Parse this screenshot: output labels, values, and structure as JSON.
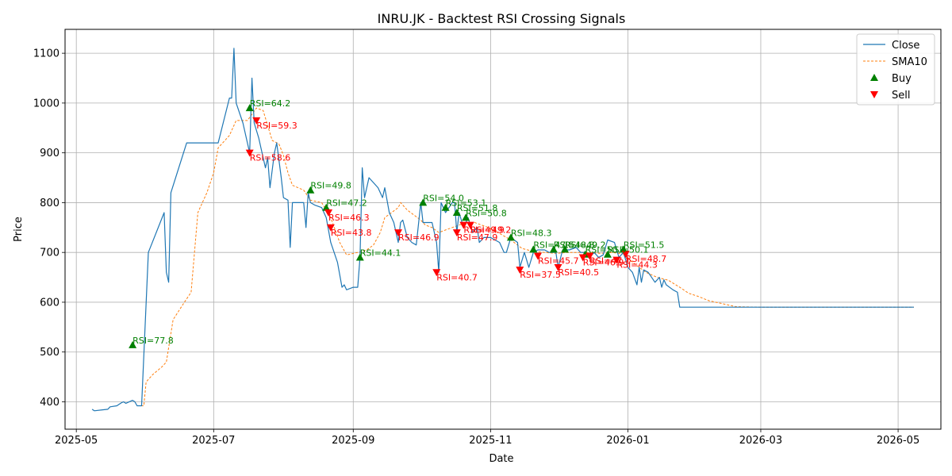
{
  "chart_data": {
    "type": "line",
    "title": "INRU.JK - Backtest RSI Crossing Signals",
    "xlabel": "Date",
    "ylabel": "Price",
    "xlim": [
      "2025-04-26",
      "2026-05-20"
    ],
    "ylim": [
      345,
      1148
    ],
    "x_ticks": [
      "2025-05",
      "2025-07",
      "2025-09",
      "2025-11",
      "2026-01",
      "2026-03",
      "2026-05"
    ],
    "y_ticks": [
      400,
      500,
      600,
      700,
      800,
      900,
      1000,
      1100
    ],
    "grid": true,
    "legend": {
      "position": "top-right",
      "entries": [
        "Close",
        "SMA10",
        "Buy",
        "Sell"
      ]
    },
    "colors": {
      "close": "#1f77b4",
      "sma": "#ff7f0e",
      "buy": "#008000",
      "sell": "#ff0000"
    },
    "series": [
      {
        "name": "Close",
        "style": "solid",
        "points": [
          [
            "2025-05-08",
            385
          ],
          [
            "2025-05-09",
            382
          ],
          [
            "2025-05-15",
            385
          ],
          [
            "2025-05-16",
            390
          ],
          [
            "2025-05-19",
            392
          ],
          [
            "2025-05-20",
            395
          ],
          [
            "2025-05-21",
            398
          ],
          [
            "2025-05-22",
            400
          ],
          [
            "2025-05-23",
            397
          ],
          [
            "2025-05-26",
            403
          ],
          [
            "2025-05-27",
            400
          ],
          [
            "2025-05-28",
            392
          ],
          [
            "2025-05-29",
            392
          ],
          [
            "2025-05-30",
            392
          ],
          [
            "2025-06-02",
            700
          ],
          [
            "2025-06-09",
            780
          ],
          [
            "2025-06-10",
            660
          ],
          [
            "2025-06-11",
            640
          ],
          [
            "2025-06-12",
            820
          ],
          [
            "2025-06-19",
            920
          ],
          [
            "2025-06-26",
            920
          ],
          [
            "2025-07-03",
            920
          ],
          [
            "2025-07-08",
            1010
          ],
          [
            "2025-07-09",
            1010
          ],
          [
            "2025-07-10",
            1110
          ],
          [
            "2025-07-11",
            1000
          ],
          [
            "2025-07-14",
            960
          ],
          [
            "2025-07-17",
            900
          ],
          [
            "2025-07-18",
            1050
          ],
          [
            "2025-07-19",
            960
          ],
          [
            "2025-07-21",
            930
          ],
          [
            "2025-07-22",
            910
          ],
          [
            "2025-07-24",
            870
          ],
          [
            "2025-07-25",
            890
          ],
          [
            "2025-07-26",
            830
          ],
          [
            "2025-07-28",
            900
          ],
          [
            "2025-07-29",
            920
          ],
          [
            "2025-07-31",
            850
          ],
          [
            "2025-08-01",
            810
          ],
          [
            "2025-08-03",
            805
          ],
          [
            "2025-08-04",
            710
          ],
          [
            "2025-08-05",
            800
          ],
          [
            "2025-08-08",
            800
          ],
          [
            "2025-08-10",
            800
          ],
          [
            "2025-08-11",
            750
          ],
          [
            "2025-08-12",
            820
          ],
          [
            "2025-08-13",
            800
          ],
          [
            "2025-08-15",
            795
          ],
          [
            "2025-08-18",
            790
          ],
          [
            "2025-08-20",
            770
          ],
          [
            "2025-08-22",
            720
          ],
          [
            "2025-08-25",
            680
          ],
          [
            "2025-08-27",
            630
          ],
          [
            "2025-08-28",
            635
          ],
          [
            "2025-08-29",
            625
          ],
          [
            "2025-09-01",
            630
          ],
          [
            "2025-09-03",
            630
          ],
          [
            "2025-09-04",
            690
          ],
          [
            "2025-09-05",
            870
          ],
          [
            "2025-09-06",
            810
          ],
          [
            "2025-09-08",
            850
          ],
          [
            "2025-09-12",
            830
          ],
          [
            "2025-09-14",
            810
          ],
          [
            "2025-09-15",
            830
          ],
          [
            "2025-09-17",
            780
          ],
          [
            "2025-09-19",
            760
          ],
          [
            "2025-09-20",
            740
          ],
          [
            "2025-09-21",
            720
          ],
          [
            "2025-09-22",
            760
          ],
          [
            "2025-09-23",
            765
          ],
          [
            "2025-09-25",
            730
          ],
          [
            "2025-09-27",
            720
          ],
          [
            "2025-09-29",
            715
          ],
          [
            "2025-10-01",
            800
          ],
          [
            "2025-10-02",
            760
          ],
          [
            "2025-10-06",
            760
          ],
          [
            "2025-10-08",
            720
          ],
          [
            "2025-10-09",
            660
          ],
          [
            "2025-10-10",
            800
          ],
          [
            "2025-10-12",
            780
          ],
          [
            "2025-10-15",
            800
          ],
          [
            "2025-10-16",
            800
          ],
          [
            "2025-10-17",
            740
          ],
          [
            "2025-10-18",
            780
          ],
          [
            "2025-10-20",
            750
          ],
          [
            "2025-10-22",
            770
          ],
          [
            "2025-10-24",
            740
          ],
          [
            "2025-10-26",
            750
          ],
          [
            "2025-10-27",
            720
          ],
          [
            "2025-10-29",
            730
          ],
          [
            "2025-11-01",
            730
          ],
          [
            "2025-11-05",
            720
          ],
          [
            "2025-11-07",
            700
          ],
          [
            "2025-11-08",
            700
          ],
          [
            "2025-11-10",
            730
          ],
          [
            "2025-11-13",
            720
          ],
          [
            "2025-11-14",
            670
          ],
          [
            "2025-11-16",
            700
          ],
          [
            "2025-11-18",
            670
          ],
          [
            "2025-11-20",
            700
          ],
          [
            "2025-11-22",
            705
          ],
          [
            "2025-11-25",
            705
          ],
          [
            "2025-11-27",
            700
          ],
          [
            "2025-11-30",
            700
          ],
          [
            "2025-12-01",
            670
          ],
          [
            "2025-12-03",
            705
          ],
          [
            "2025-12-06",
            705
          ],
          [
            "2025-12-09",
            710
          ],
          [
            "2025-12-11",
            700
          ],
          [
            "2025-12-13",
            700
          ],
          [
            "2025-12-15",
            690
          ],
          [
            "2025-12-17",
            700
          ],
          [
            "2025-12-19",
            690
          ],
          [
            "2025-12-21",
            695
          ],
          [
            "2025-12-23",
            725
          ],
          [
            "2025-12-26",
            720
          ],
          [
            "2025-12-28",
            690
          ],
          [
            "2025-12-30",
            700
          ],
          [
            "2026-01-01",
            670
          ],
          [
            "2026-01-03",
            660
          ],
          [
            "2026-01-05",
            635
          ],
          [
            "2026-01-06",
            670
          ],
          [
            "2026-01-07",
            640
          ],
          [
            "2026-01-08",
            665
          ],
          [
            "2026-01-10",
            660
          ],
          [
            "2026-01-13",
            640
          ],
          [
            "2026-01-15",
            650
          ],
          [
            "2026-01-16",
            630
          ],
          [
            "2026-01-17",
            645
          ],
          [
            "2026-01-18",
            635
          ],
          [
            "2026-01-21",
            625
          ],
          [
            "2026-01-23",
            620
          ],
          [
            "2026-01-24",
            590
          ],
          [
            "2026-02-01",
            590
          ],
          [
            "2026-03-01",
            590
          ],
          [
            "2026-04-01",
            590
          ],
          [
            "2026-05-01",
            590
          ],
          [
            "2026-05-08",
            590
          ]
        ]
      },
      {
        "name": "SMA10",
        "style": "dashed",
        "points": [
          [
            "2025-05-28",
            392
          ],
          [
            "2025-05-31",
            392
          ],
          [
            "2025-06-01",
            440
          ],
          [
            "2025-06-04",
            455
          ],
          [
            "2025-06-08",
            470
          ],
          [
            "2025-06-10",
            480
          ],
          [
            "2025-06-13",
            565
          ],
          [
            "2025-06-18",
            600
          ],
          [
            "2025-06-21",
            620
          ],
          [
            "2025-06-24",
            780
          ],
          [
            "2025-06-28",
            820
          ],
          [
            "2025-07-01",
            860
          ],
          [
            "2025-07-03",
            910
          ],
          [
            "2025-07-06",
            925
          ],
          [
            "2025-07-08",
            935
          ],
          [
            "2025-07-11",
            965
          ],
          [
            "2025-07-14",
            965
          ],
          [
            "2025-07-16",
            965
          ],
          [
            "2025-07-20",
            990
          ],
          [
            "2025-07-23",
            985
          ],
          [
            "2025-07-27",
            925
          ],
          [
            "2025-07-30",
            918
          ],
          [
            "2025-08-01",
            895
          ],
          [
            "2025-08-03",
            860
          ],
          [
            "2025-08-05",
            835
          ],
          [
            "2025-08-10",
            825
          ],
          [
            "2025-08-13",
            805
          ],
          [
            "2025-08-18",
            800
          ],
          [
            "2025-08-22",
            770
          ],
          [
            "2025-08-26",
            720
          ],
          [
            "2025-08-29",
            695
          ],
          [
            "2025-09-03",
            700
          ],
          [
            "2025-09-07",
            705
          ],
          [
            "2025-09-10",
            715
          ],
          [
            "2025-09-13",
            740
          ],
          [
            "2025-09-15",
            770
          ],
          [
            "2025-09-18",
            780
          ],
          [
            "2025-09-21",
            790
          ],
          [
            "2025-09-22",
            800
          ],
          [
            "2025-09-25",
            785
          ],
          [
            "2025-09-28",
            775
          ],
          [
            "2025-10-01",
            765
          ],
          [
            "2025-10-03",
            755
          ],
          [
            "2025-10-06",
            750
          ],
          [
            "2025-10-09",
            740
          ],
          [
            "2025-10-12",
            745
          ],
          [
            "2025-10-15",
            750
          ],
          [
            "2025-10-18",
            755
          ],
          [
            "2025-10-21",
            760
          ],
          [
            "2025-10-25",
            760
          ],
          [
            "2025-10-28",
            755
          ],
          [
            "2025-10-31",
            750
          ],
          [
            "2025-11-05",
            738
          ],
          [
            "2025-11-10",
            725
          ],
          [
            "2025-11-15",
            708
          ],
          [
            "2025-11-20",
            702
          ],
          [
            "2025-11-25",
            700
          ],
          [
            "2025-11-30",
            698
          ],
          [
            "2025-12-05",
            700
          ],
          [
            "2025-12-10",
            700
          ],
          [
            "2025-12-15",
            700
          ],
          [
            "2025-12-20",
            698
          ],
          [
            "2025-12-25",
            700
          ],
          [
            "2025-12-30",
            697
          ],
          [
            "2026-01-04",
            677
          ],
          [
            "2026-01-09",
            660
          ],
          [
            "2026-01-14",
            650
          ],
          [
            "2026-01-19",
            644
          ],
          [
            "2026-01-24",
            630
          ],
          [
            "2026-01-28",
            618
          ],
          [
            "2026-02-01",
            612
          ],
          [
            "2026-02-06",
            603
          ],
          [
            "2026-02-12",
            597
          ],
          [
            "2026-02-18",
            591
          ],
          [
            "2026-03-01",
            590
          ],
          [
            "2026-04-01",
            590
          ],
          [
            "2026-05-01",
            590
          ],
          [
            "2026-05-08",
            590
          ]
        ]
      }
    ],
    "buy_signals": [
      {
        "x": "2025-05-26",
        "y": 514,
        "label": "RSI=77.8"
      },
      {
        "x": "2025-07-17",
        "y": 990,
        "label": "RSI=64.2"
      },
      {
        "x": "2025-08-13",
        "y": 825,
        "label": "RSI=49.8"
      },
      {
        "x": "2025-08-20",
        "y": 790,
        "label": "RSI=47.2"
      },
      {
        "x": "2025-09-04",
        "y": 690,
        "label": "RSI=44.1"
      },
      {
        "x": "2025-10-02",
        "y": 800,
        "label": "RSI=54.0"
      },
      {
        "x": "2025-10-12",
        "y": 790,
        "label": "RSI=53.1"
      },
      {
        "x": "2025-10-17",
        "y": 780,
        "label": "RSI=51.8"
      },
      {
        "x": "2025-10-21",
        "y": 770,
        "label": "RSI=50.8"
      },
      {
        "x": "2025-11-10",
        "y": 730,
        "label": "RSI=48.3"
      },
      {
        "x": "2025-11-20",
        "y": 706,
        "label": "RSI=47.5"
      },
      {
        "x": "2025-11-29",
        "y": 706,
        "label": "RSI=48.8"
      },
      {
        "x": "2025-12-04",
        "y": 706,
        "label": "RSI=49.2"
      },
      {
        "x": "2025-12-13",
        "y": 696,
        "label": "RSI=50.3"
      },
      {
        "x": "2025-12-23",
        "y": 696,
        "label": "RSI=50.1"
      },
      {
        "x": "2025-12-30",
        "y": 706,
        "label": "RSI=51.5"
      }
    ],
    "sell_signals": [
      {
        "x": "2025-07-17",
        "y": 900,
        "label": "RSI=58.6"
      },
      {
        "x": "2025-07-20",
        "y": 965,
        "label": "RSI=59.3"
      },
      {
        "x": "2025-08-21",
        "y": 780,
        "label": "RSI=46.3"
      },
      {
        "x": "2025-08-22",
        "y": 750,
        "label": "RSI=43.8"
      },
      {
        "x": "2025-09-21",
        "y": 740,
        "label": "RSI=46.9"
      },
      {
        "x": "2025-10-08",
        "y": 660,
        "label": "RSI=40.7"
      },
      {
        "x": "2025-10-17",
        "y": 740,
        "label": "RSI=47.9"
      },
      {
        "x": "2025-10-20",
        "y": 755,
        "label": "RSI=49.9"
      },
      {
        "x": "2025-10-23",
        "y": 755,
        "label": "RSI=49.2"
      },
      {
        "x": "2025-11-14",
        "y": 665,
        "label": "RSI=37.5"
      },
      {
        "x": "2025-11-22",
        "y": 693,
        "label": "RSI=45.7"
      },
      {
        "x": "2025-12-01",
        "y": 670,
        "label": "RSI=40.5"
      },
      {
        "x": "2025-12-12",
        "y": 690,
        "label": "RSI=46.9"
      },
      {
        "x": "2025-12-15",
        "y": 693,
        "label": "RSI=47.1"
      },
      {
        "x": "2025-12-27",
        "y": 685,
        "label": "RSI=44.3"
      },
      {
        "x": "2025-12-31",
        "y": 697,
        "label": "RSI=48.7"
      }
    ]
  }
}
